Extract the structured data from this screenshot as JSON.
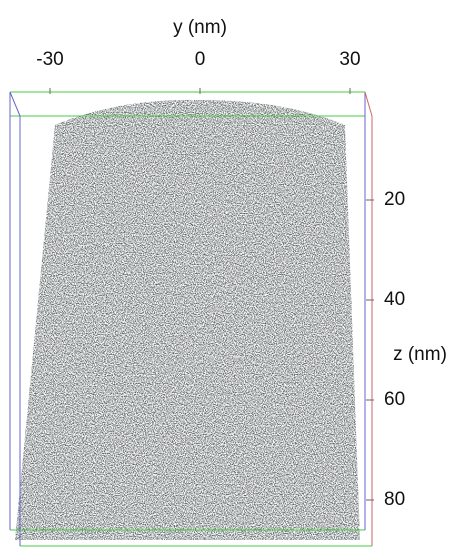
{
  "top_axis": {
    "label": "y (nm)",
    "ticks": [
      -30,
      0,
      30
    ]
  },
  "right_axis": {
    "label": "z (nm)",
    "ticks": [
      20,
      40,
      60,
      80
    ]
  }
}
